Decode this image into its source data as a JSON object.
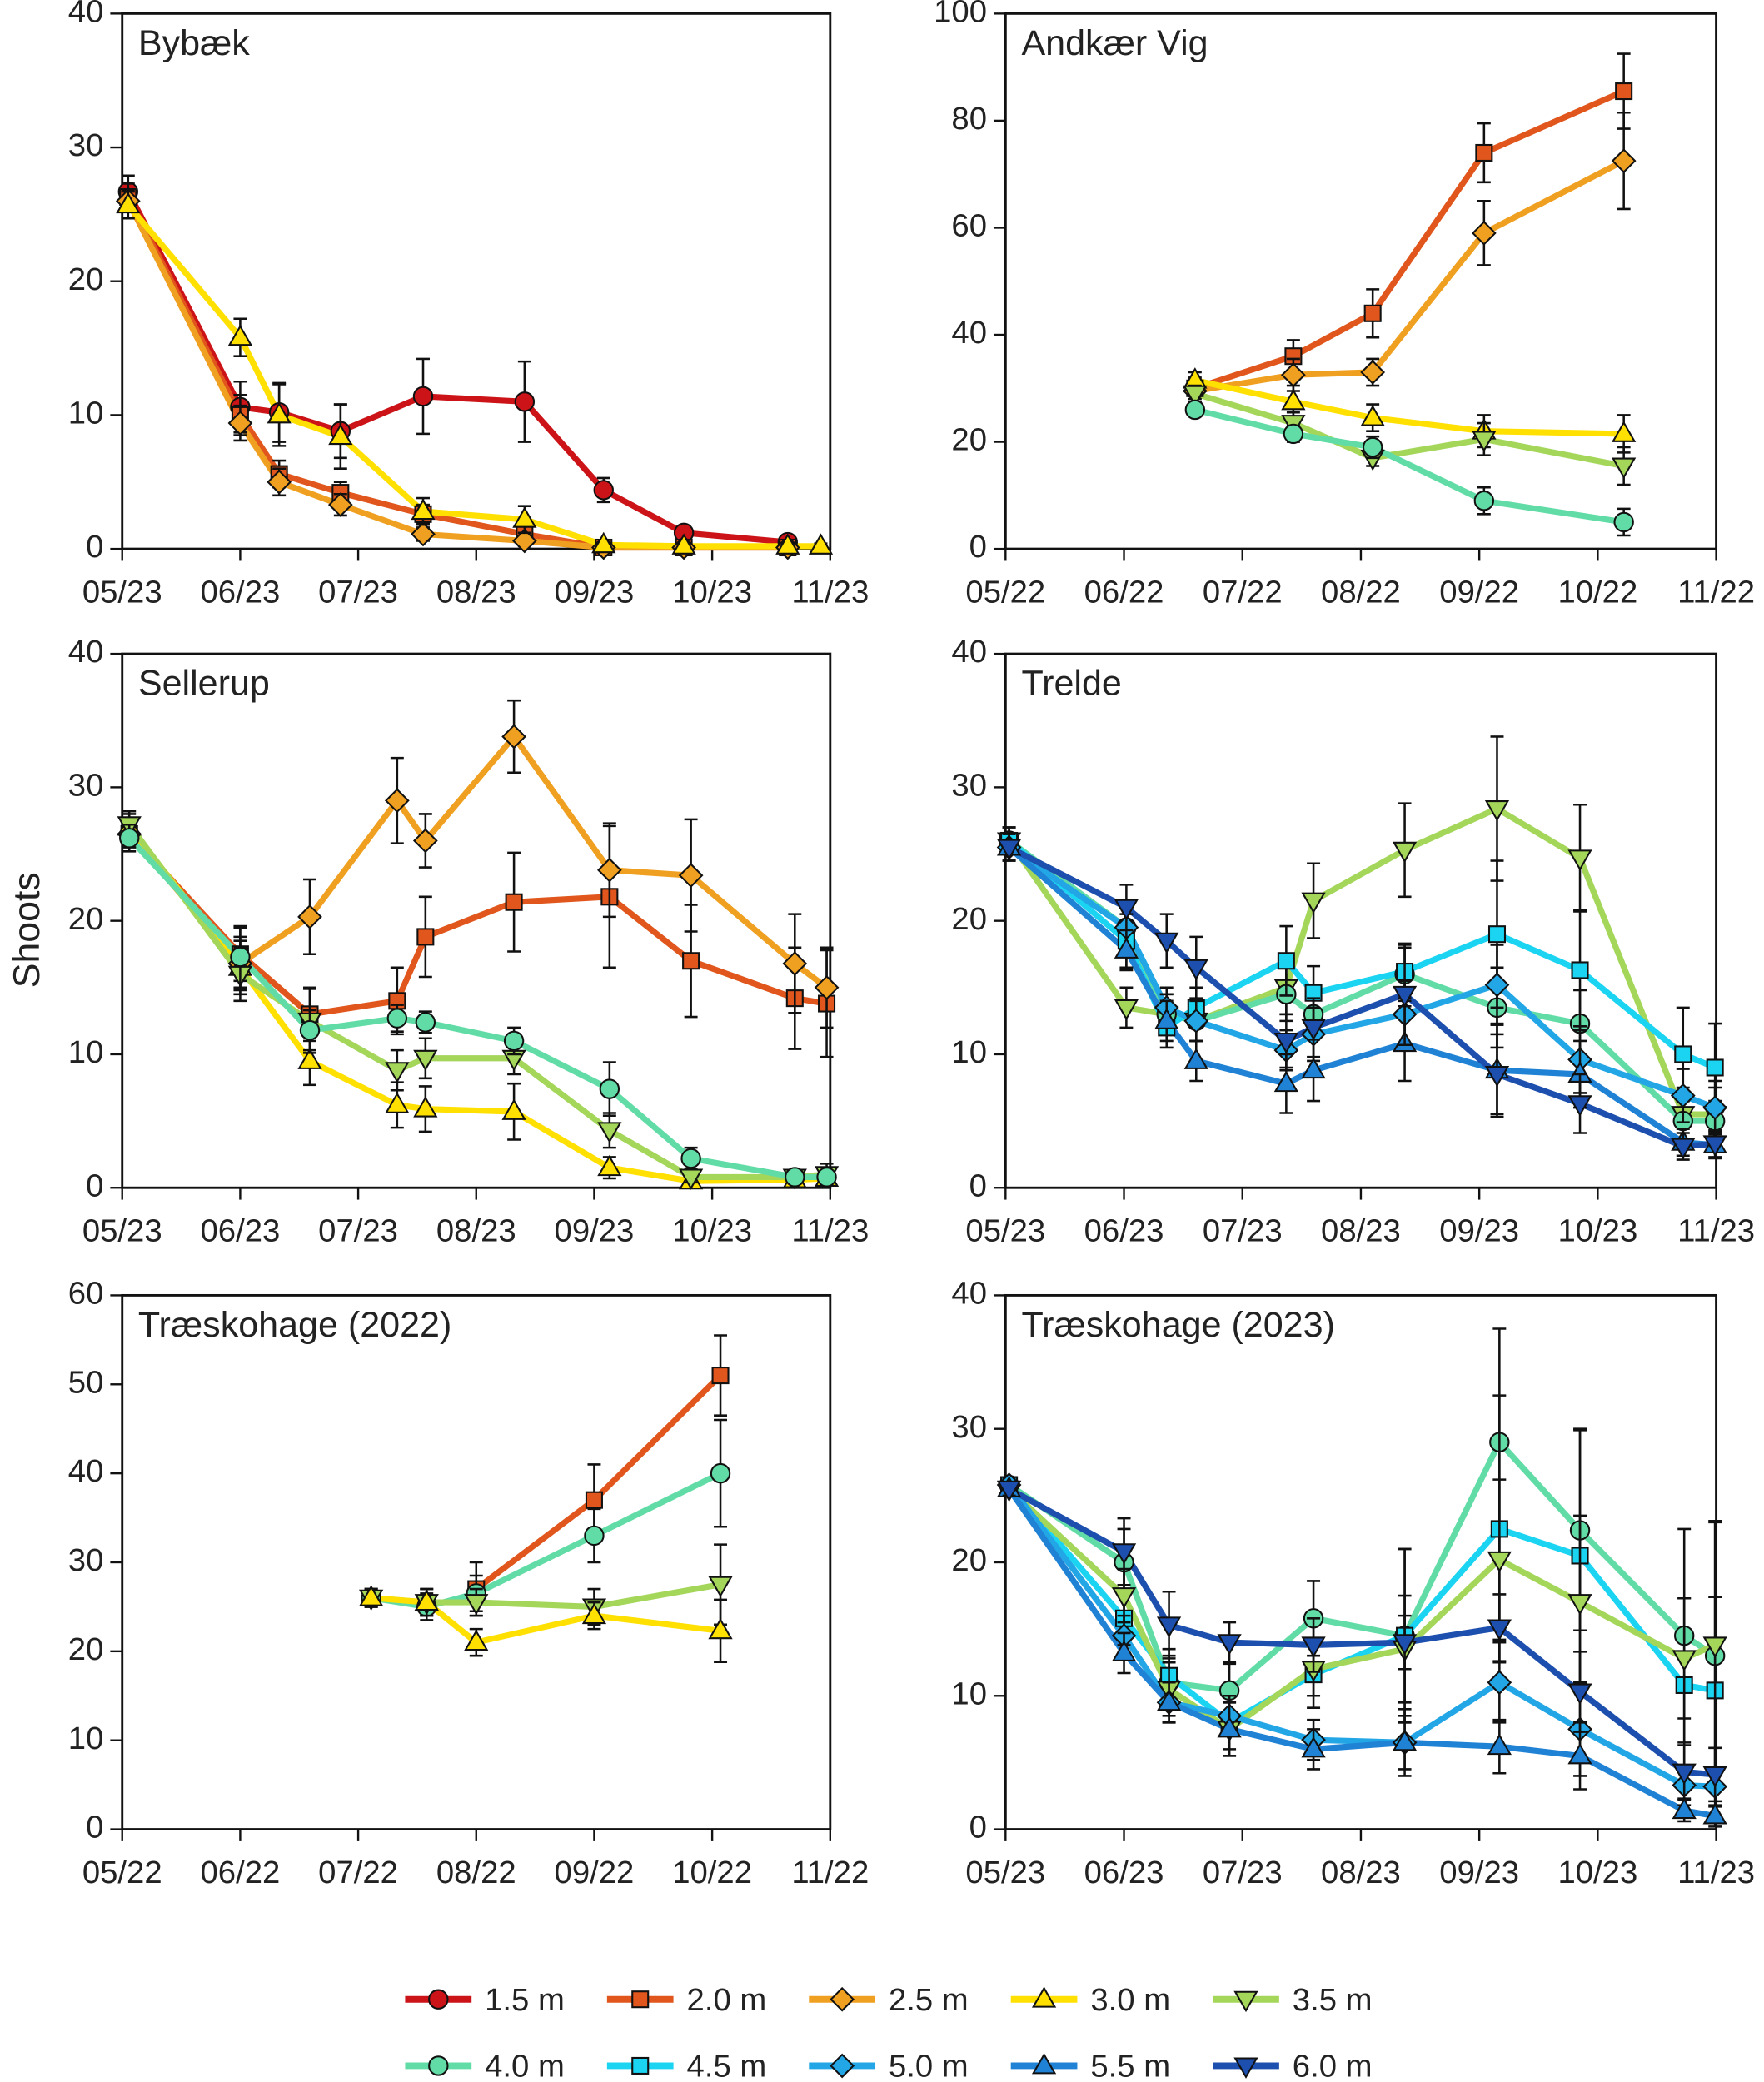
{
  "ylabel": "Shoots",
  "legend": [
    {
      "name": "1.5 m",
      "color": "#cc1418",
      "marker": "circle"
    },
    {
      "name": "2.0 m",
      "color": "#e0561c",
      "marker": "square"
    },
    {
      "name": "2.5 m",
      "color": "#f0a020",
      "marker": "diamond"
    },
    {
      "name": "3.0 m",
      "color": "#ffe000",
      "marker": "triangle-up"
    },
    {
      "name": "3.5 m",
      "color": "#a4d65a",
      "marker": "triangle-down"
    },
    {
      "name": "4.0 m",
      "color": "#62dca6",
      "marker": "circle"
    },
    {
      "name": "4.5 m",
      "color": "#1ad4f2",
      "marker": "square"
    },
    {
      "name": "5.0 m",
      "color": "#22a6e6",
      "marker": "diamond"
    },
    {
      "name": "5.5 m",
      "color": "#1f82d4",
      "marker": "triangle-up"
    },
    {
      "name": "6.0 m",
      "color": "#1d4fae",
      "marker": "triangle-down"
    }
  ],
  "chart_data": [
    {
      "type": "line",
      "title": "Bybæk",
      "title_color": "#e00000",
      "xlim": [
        0,
        6
      ],
      "xticks": [
        {
          "value": 0,
          "label": "05/23"
        },
        {
          "value": 1,
          "label": "06/23"
        },
        {
          "value": 2,
          "label": "07/23"
        },
        {
          "value": 3,
          "label": "08/23"
        },
        {
          "value": 4,
          "label": "09/23"
        },
        {
          "value": 5,
          "label": "10/23"
        },
        {
          "value": 6,
          "label": "11/23"
        }
      ],
      "ylim": [
        0,
        40
      ],
      "yticks": [
        0,
        10,
        20,
        30,
        40
      ],
      "x": [
        0.05,
        1.0,
        1.33,
        1.85,
        2.55,
        3.41,
        4.08,
        4.76,
        5.64,
        5.92
      ],
      "series": [
        {
          "name": "1.5 m",
          "values": [
            26.7,
            10.6,
            10.2,
            8.8,
            11.4,
            11.0,
            4.4,
            1.2,
            0.5,
            null
          ],
          "errors": [
            1.2,
            1.9,
            2.2,
            2.0,
            2.8,
            3.0,
            0.9,
            0.4,
            0.2,
            null
          ]
        },
        {
          "name": "2.0 m",
          "values": [
            26.3,
            10.0,
            5.6,
            4.2,
            2.6,
            1.1,
            0.1,
            0.1,
            0.1,
            null
          ],
          "errors": [
            1,
            1.5,
            1,
            0.8,
            0.7,
            0.5,
            0.1,
            0.1,
            0.1,
            null
          ]
        },
        {
          "name": "2.5 m",
          "values": [
            26.0,
            9.4,
            5.0,
            3.3,
            1.1,
            0.6,
            0.1,
            0.1,
            0.1,
            null
          ],
          "errors": [
            0.8,
            1.3,
            1,
            0.8,
            0.5,
            0.4,
            0.1,
            0.1,
            0.1,
            null
          ]
        },
        {
          "name": "3.0 m",
          "values": [
            25.7,
            15.8,
            10.0,
            8.4,
            2.8,
            2.2,
            0.3,
            0.2,
            0.2,
            0.2
          ],
          "errors": [
            1,
            1.4,
            2.3,
            2.4,
            1,
            1,
            0.2,
            0.2,
            0.2,
            0.2
          ]
        }
      ]
    },
    {
      "type": "line",
      "title": "Andkær Vig",
      "title_color": "#1a8a1a",
      "xlim": [
        0,
        6
      ],
      "xticks": [
        {
          "value": 0,
          "label": "05/22"
        },
        {
          "value": 1,
          "label": "06/22"
        },
        {
          "value": 2,
          "label": "07/22"
        },
        {
          "value": 3,
          "label": "08/22"
        },
        {
          "value": 4,
          "label": "09/22"
        },
        {
          "value": 5,
          "label": "10/22"
        },
        {
          "value": 6,
          "label": "11/22"
        }
      ],
      "ylim": [
        0,
        100
      ],
      "yticks": [
        0,
        20,
        40,
        60,
        80,
        100
      ],
      "x": [
        1.6,
        2.43,
        3.1,
        4.04,
        5.22
      ],
      "series": [
        {
          "name": "2.0 m",
          "values": [
            30,
            36,
            44,
            74,
            85.5
          ],
          "errors": [
            2,
            3,
            4.5,
            5.5,
            7
          ]
        },
        {
          "name": "2.5 m",
          "values": [
            29.5,
            32.5,
            33,
            59,
            72.5
          ],
          "errors": [
            2,
            3,
            2.5,
            6,
            9
          ]
        },
        {
          "name": "3.0 m",
          "values": [
            31.5,
            27.5,
            24.5,
            22,
            21.5
          ],
          "errors": [
            1.5,
            3,
            2.5,
            3,
            3.5
          ]
        },
        {
          "name": "3.5 m",
          "values": [
            29,
            23.5,
            17,
            20.5,
            15.5
          ],
          "errors": [
            1.5,
            2,
            1.5,
            3,
            3.5
          ]
        },
        {
          "name": "4.0 m",
          "values": [
            26,
            21.5,
            19,
            9,
            5
          ],
          "errors": [
            1,
            1.5,
            2,
            2.5,
            2.5
          ]
        }
      ]
    },
    {
      "type": "line",
      "title": "Sellerup",
      "title_color": "#777777",
      "xlim": [
        0,
        6
      ],
      "xticks": [
        {
          "value": 0,
          "label": "05/23"
        },
        {
          "value": 1,
          "label": "06/23"
        },
        {
          "value": 2,
          "label": "07/23"
        },
        {
          "value": 3,
          "label": "08/23"
        },
        {
          "value": 4,
          "label": "09/23"
        },
        {
          "value": 5,
          "label": "10/23"
        },
        {
          "value": 6,
          "label": "11/23"
        }
      ],
      "ylim": [
        0,
        40
      ],
      "yticks": [
        0,
        10,
        20,
        30,
        40
      ],
      "x": [
        0.06,
        1.0,
        1.59,
        2.33,
        2.57,
        3.32,
        4.13,
        4.82,
        5.7,
        5.97
      ],
      "series": [
        {
          "name": "2.0 m",
          "values": [
            26.5,
            17.5,
            13,
            14,
            18.8,
            21.4,
            21.8,
            17,
            14.2,
            13.8
          ],
          "errors": [
            1,
            2,
            2,
            2.5,
            3,
            3.7,
            5.3,
            4.2,
            3.8,
            4
          ]
        },
        {
          "name": "2.5 m",
          "values": [
            26.5,
            16.8,
            20.3,
            29,
            26,
            33.8,
            23.8,
            23.4,
            16.8,
            15
          ],
          "errors": [
            1,
            2,
            2.8,
            3.2,
            2,
            2.7,
            3.5,
            4.2,
            3.7,
            3
          ]
        },
        {
          "name": "3.0 m",
          "values": [
            27,
            16.5,
            9.5,
            6.2,
            5.9,
            5.7,
            1.5,
            0.5,
            0.6,
            0.7
          ],
          "errors": [
            1,
            2,
            1.8,
            1.7,
            1.7,
            2.1,
            0.8,
            0.4,
            0.4,
            0.4
          ]
        },
        {
          "name": "3.5 m",
          "values": [
            27.2,
            16,
            12.5,
            8.8,
            9.7,
            9.7,
            4.3,
            0.8,
            0.8,
            1
          ],
          "errors": [
            1,
            2,
            2.4,
            1.5,
            1.5,
            1.2,
            1.3,
            0.4,
            0.5,
            0.8
          ]
        },
        {
          "name": "4.0 m",
          "values": [
            26.2,
            17.3,
            11.8,
            12.7,
            12.4,
            11,
            7.4,
            2.2,
            0.8,
            0.8
          ],
          "errors": [
            1,
            2.3,
            1.5,
            1,
            0.8,
            1,
            2,
            0.8,
            0.4,
            0.4
          ]
        }
      ]
    },
    {
      "type": "line",
      "title": "Trelde",
      "title_color": "#000000",
      "xlim": [
        0,
        6
      ],
      "xticks": [
        {
          "value": 0,
          "label": "05/23"
        },
        {
          "value": 1,
          "label": "06/23"
        },
        {
          "value": 2,
          "label": "07/23"
        },
        {
          "value": 3,
          "label": "08/23"
        },
        {
          "value": 4,
          "label": "09/23"
        },
        {
          "value": 5,
          "label": "10/23"
        },
        {
          "value": 6,
          "label": "11/23"
        }
      ],
      "ylim": [
        0,
        40
      ],
      "yticks": [
        0,
        10,
        20,
        30,
        40
      ],
      "x": [
        0.03,
        1.02,
        1.36,
        1.61,
        2.37,
        2.6,
        3.37,
        4.15,
        4.85,
        5.72,
        5.99
      ],
      "series": [
        {
          "name": "3.5 m",
          "values": [
            26,
            13.5,
            13,
            12.5,
            15,
            21.5,
            25.3,
            28.4,
            24.7,
            5.5,
            5.5
          ],
          "errors": [
            1,
            1.5,
            1.5,
            1.5,
            2,
            2.8,
            3.5,
            5.4,
            4,
            2,
            2
          ]
        },
        {
          "name": "4.0 m",
          "values": [
            26,
            19.5,
            13,
            12.5,
            14.5,
            13,
            16,
            13.5,
            12.3,
            5,
            5
          ],
          "errors": [
            1,
            1.5,
            1.5,
            1.5,
            2,
            1.5,
            2,
            3,
            2.5,
            1.5,
            1.5
          ]
        },
        {
          "name": "4.5 m",
          "values": [
            26,
            18.5,
            12,
            13.5,
            17,
            14.6,
            16.2,
            19,
            16.3,
            10,
            9
          ],
          "errors": [
            1,
            2,
            1.5,
            1.5,
            2.6,
            2,
            2,
            5.5,
            4.5,
            3.5,
            3.3
          ]
        },
        {
          "name": "5.0 m",
          "values": [
            25.5,
            19.5,
            13.5,
            12.5,
            10.3,
            11.5,
            13,
            15.2,
            9.6,
            6.9,
            6
          ],
          "errors": [
            1,
            2,
            1.5,
            1.5,
            1.5,
            2,
            2.5,
            3,
            2.5,
            2,
            2
          ]
        },
        {
          "name": "5.5 m",
          "values": [
            25.5,
            17.8,
            12.5,
            9.5,
            7.8,
            8.8,
            10.8,
            8.8,
            8.5,
            3.4,
            3.2
          ],
          "errors": [
            1,
            1.5,
            1.5,
            1.5,
            2.2,
            2.3,
            2.8,
            3.5,
            2.5,
            1,
            1
          ]
        },
        {
          "name": "6.0 m",
          "values": [
            25.5,
            21,
            18.5,
            16.5,
            11,
            12,
            14.5,
            8.5,
            6.3,
            3.1,
            3.3
          ],
          "errors": [
            1,
            1.7,
            2,
            2.3,
            2,
            2.2,
            3.8,
            3,
            2.2,
            1,
            1
          ]
        }
      ]
    },
    {
      "type": "line",
      "title": "Træskohage (2022)",
      "title_color": "#4040c0",
      "xlim": [
        0,
        6
      ],
      "xticks": [
        {
          "value": 0,
          "label": "05/22"
        },
        {
          "value": 1,
          "label": "06/22"
        },
        {
          "value": 2,
          "label": "07/22"
        },
        {
          "value": 3,
          "label": "08/22"
        },
        {
          "value": 4,
          "label": "09/22"
        },
        {
          "value": 5,
          "label": "10/22"
        },
        {
          "value": 6,
          "label": "11/22"
        }
      ],
      "ylim": [
        0,
        60
      ],
      "yticks": [
        0,
        10,
        20,
        30,
        40,
        50,
        60
      ],
      "x": [
        2.11,
        2.58,
        3.0,
        4.0,
        5.07
      ],
      "series": [
        {
          "name": "2.0 m",
          "values": [
            null,
            null,
            27,
            37,
            51
          ],
          "errors": [
            null,
            null,
            3,
            4,
            4.5
          ]
        },
        {
          "name": "4.0 m",
          "values": [
            26,
            25,
            26.5,
            33,
            40
          ],
          "errors": [
            1,
            1.5,
            2,
            3,
            6
          ]
        },
        {
          "name": "3.5 m",
          "values": [
            26,
            25.5,
            25.5,
            25,
            27.5
          ],
          "errors": [
            1,
            1.5,
            1.5,
            2,
            4.5
          ]
        },
        {
          "name": "3.0 m",
          "values": [
            26,
            25.5,
            21,
            24,
            22.3
          ],
          "errors": [
            1,
            1.5,
            1.5,
            1.5,
            3.5
          ]
        }
      ]
    },
    {
      "type": "line",
      "title": "Træskohage (2023)",
      "title_color": "#4040c0",
      "xlim": [
        0,
        6
      ],
      "xticks": [
        {
          "value": 0,
          "label": "05/23"
        },
        {
          "value": 1,
          "label": "06/23"
        },
        {
          "value": 2,
          "label": "07/23"
        },
        {
          "value": 3,
          "label": "08/23"
        },
        {
          "value": 4,
          "label": "09/23"
        },
        {
          "value": 5,
          "label": "10/23"
        },
        {
          "value": 6,
          "label": "11/23"
        }
      ],
      "ylim": [
        0,
        40
      ],
      "yticks": [
        0,
        10,
        20,
        30,
        40
      ],
      "x": [
        0.03,
        1.0,
        1.38,
        1.89,
        2.6,
        3.37,
        4.17,
        4.85,
        5.73,
        5.99
      ],
      "series": [
        {
          "name": "4.0 m",
          "values": [
            25.8,
            20,
            11,
            10.4,
            15.8,
            14.5,
            29,
            22.4,
            14.5,
            13
          ],
          "errors": [
            0.5,
            2.5,
            2,
            2,
            2.8,
            6.5,
            8.5,
            7.5,
            8,
            10
          ]
        },
        {
          "name": "4.5 m",
          "values": [
            25.8,
            15.8,
            11.5,
            8,
            11.6,
            14.5,
            22.5,
            20.5,
            10.8,
            10.4
          ],
          "errors": [
            0.5,
            2,
            2,
            2,
            2.5,
            6.5,
            10,
            9.5,
            6.5,
            7
          ]
        },
        {
          "name": "3.5 m",
          "values": [
            25.5,
            17.5,
            10.5,
            7.5,
            12,
            13.5,
            20.2,
            17,
            12.8,
            13.8
          ],
          "errors": [
            0.5,
            2,
            2,
            2,
            2,
            4,
            6,
            6.5,
            4.5,
            9.3
          ]
        },
        {
          "name": "5.0 m",
          "values": [
            25.8,
            14.5,
            9.5,
            8.5,
            6.7,
            6.5,
            11,
            7.5,
            3.3,
            3.2
          ],
          "errors": [
            0.5,
            1.5,
            1.5,
            1.5,
            1.5,
            2,
            3,
            3.5,
            1.5,
            1.5
          ]
        },
        {
          "name": "5.5 m",
          "values": [
            25.5,
            13.2,
            9.5,
            7.5,
            6,
            6.5,
            6.2,
            5.5,
            1.4,
            1
          ],
          "errors": [
            0.5,
            1.5,
            1.5,
            2,
            1.5,
            2.5,
            2,
            2.5,
            0.8,
            0.8
          ]
        },
        {
          "name": "6.0 m",
          "values": [
            25.5,
            20.8,
            15.3,
            14,
            13.8,
            14,
            15.1,
            10.3,
            4.3,
            4.1
          ],
          "errors": [
            0.5,
            2.5,
            2.5,
            1.5,
            2,
            2,
            2.5,
            3,
            2,
            2
          ]
        }
      ]
    }
  ]
}
